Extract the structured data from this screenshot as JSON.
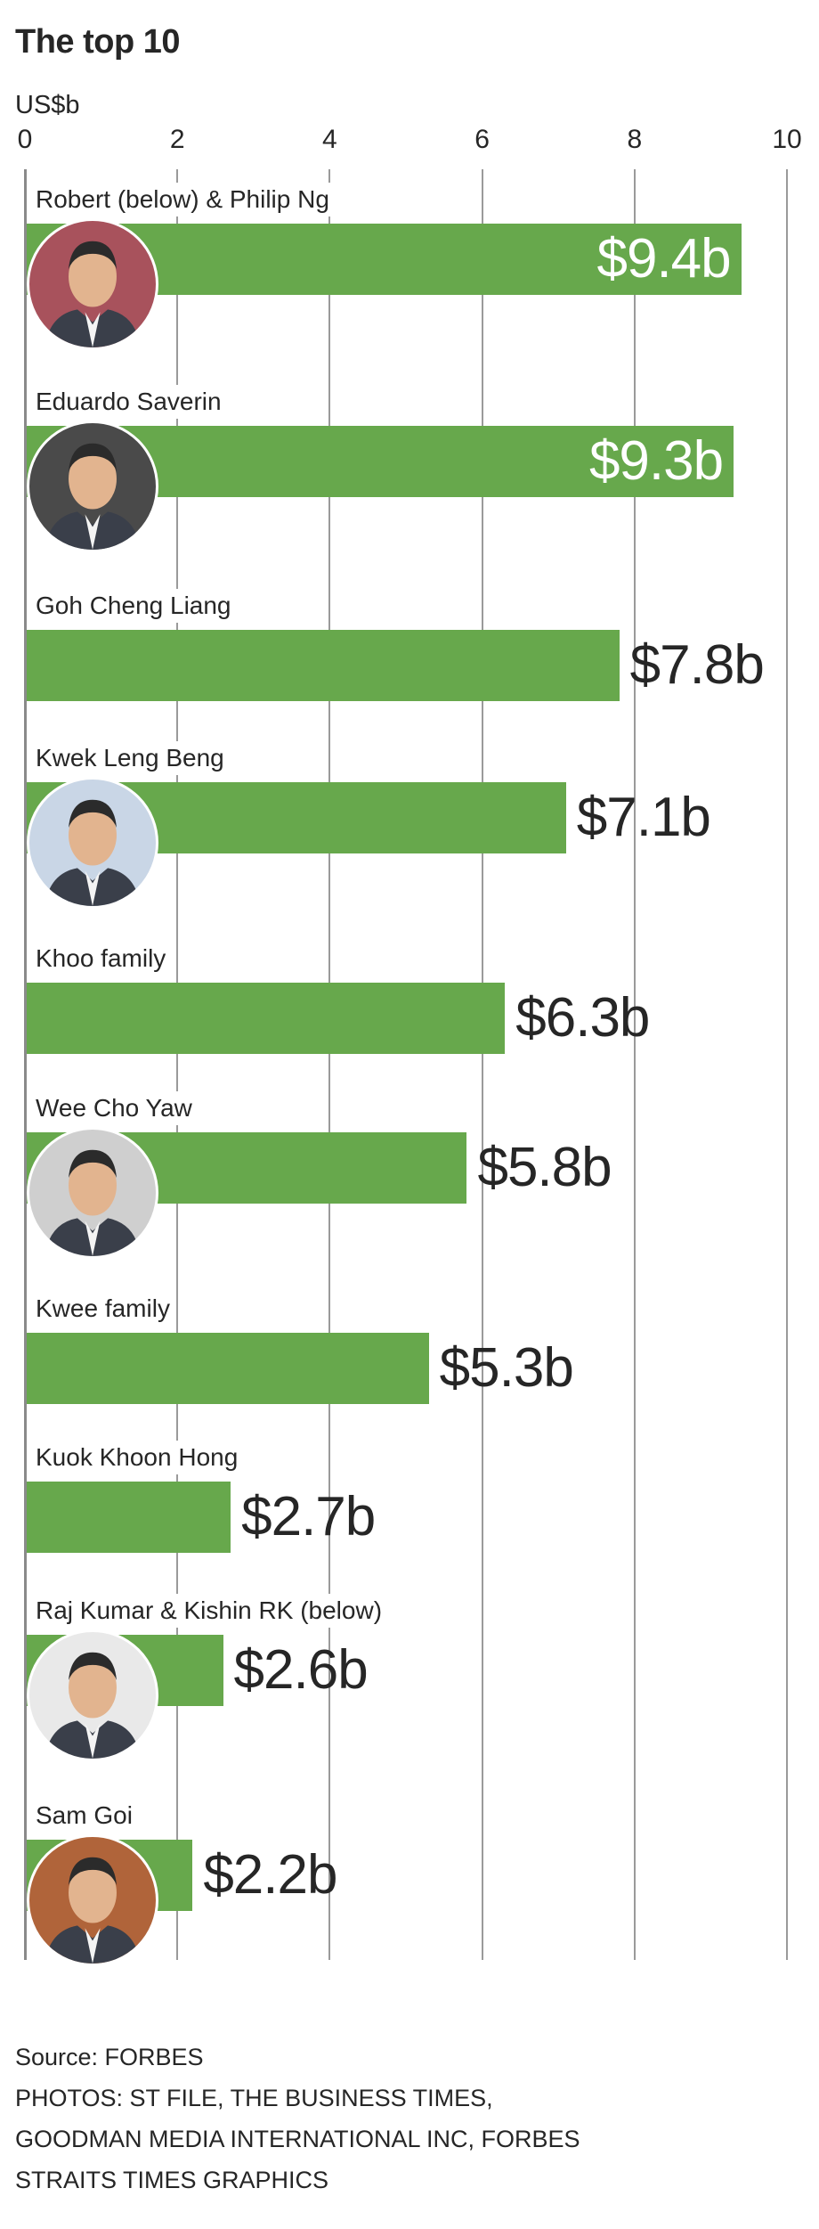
{
  "chart_data": {
    "type": "bar",
    "orientation": "horizontal",
    "title": "The top 10",
    "ylabel": "US$b",
    "xlim": [
      0,
      10
    ],
    "ticks": [
      "0",
      "2",
      "4",
      "6",
      "8",
      "10"
    ],
    "grid": true,
    "bar_color": "#67a84c",
    "categories": [
      "Robert (below) & Philip Ng",
      "Eduardo Saverin",
      "Goh Cheng Liang",
      "Kwek Leng Beng",
      "Khoo family",
      "Wee Cho Yaw",
      "Kwee family",
      "Kuok Khoon Hong",
      "Raj Kumar & Kishin RK (below)",
      "Sam Goi"
    ],
    "values": [
      9.4,
      9.3,
      7.8,
      7.1,
      6.3,
      5.8,
      5.3,
      2.7,
      2.6,
      2.2
    ],
    "value_labels": [
      "$9.4b",
      "$9.3b",
      "$7.8b",
      "$7.1b",
      "$6.3b",
      "$5.8b",
      "$5.3b",
      "$2.7b",
      "$2.6b",
      "$2.2b"
    ],
    "has_photo": [
      true,
      true,
      false,
      true,
      false,
      true,
      false,
      false,
      true,
      true
    ],
    "photo_bg": [
      "#a8525c",
      "#4a4a4a",
      "",
      "#c9d6e6",
      "",
      "#cfcfcf",
      "",
      "",
      "#e9e9e9",
      "#b0643a"
    ]
  },
  "footer": {
    "source": "Source: FORBES",
    "photos_line1": "PHOTOS: ST FILE, THE BUSINESS TIMES,",
    "photos_line2": "GOODMAN MEDIA INTERNATIONAL INC, FORBES",
    "credit": "STRAITS TIMES GRAPHICS"
  }
}
